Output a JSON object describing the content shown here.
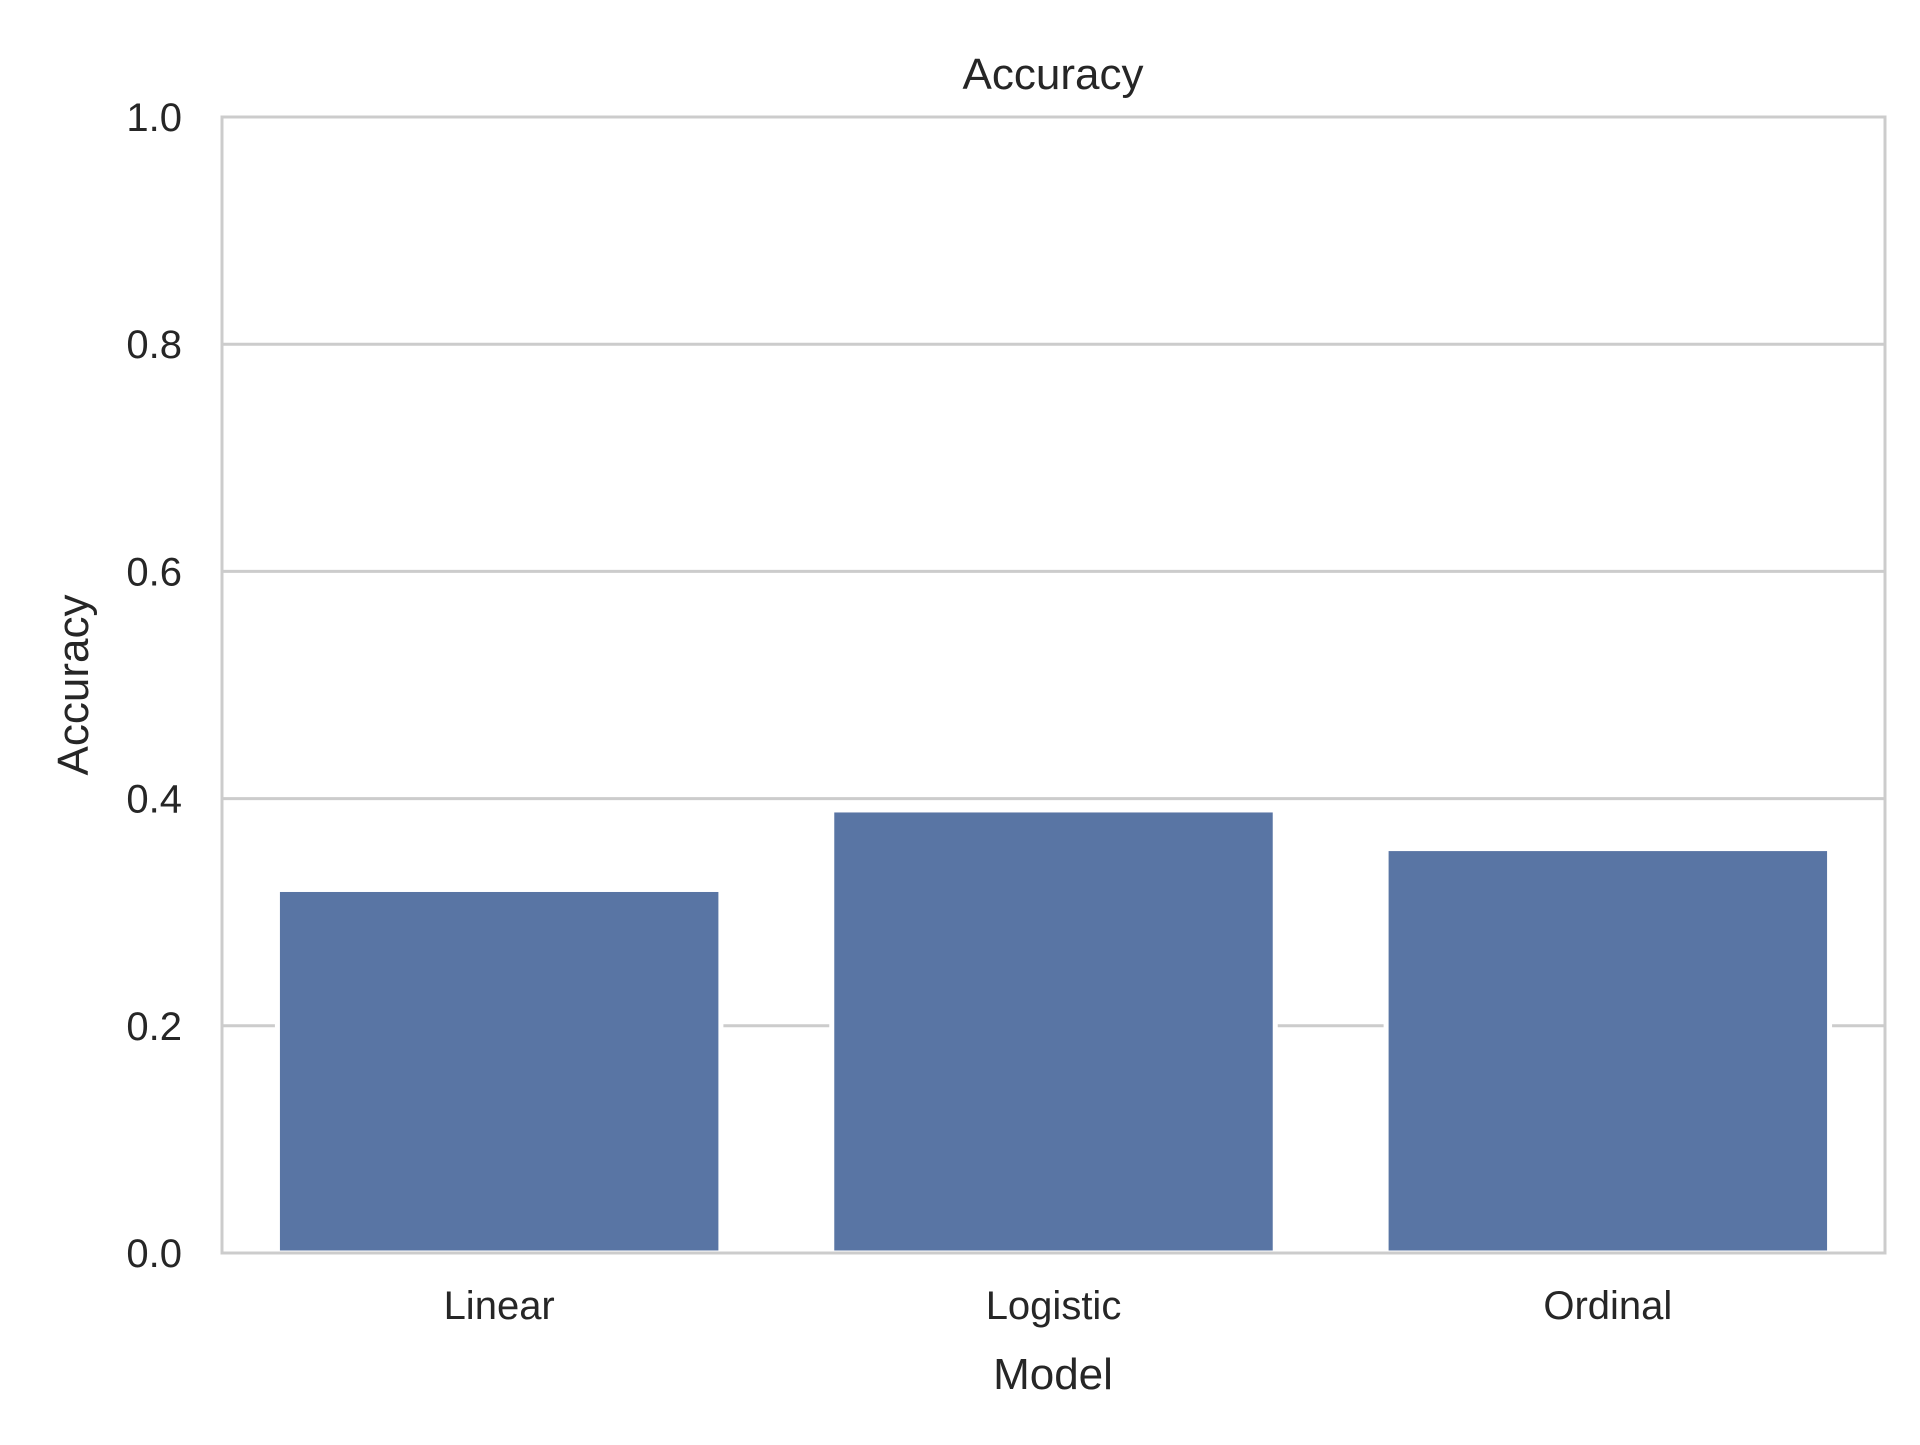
{
  "chart_data": {
    "type": "bar",
    "title": "Accuracy",
    "xlabel": "Model",
    "ylabel": "Accuracy",
    "categories": [
      "Linear",
      "Logistic",
      "Ordinal"
    ],
    "values": [
      0.32,
      0.39,
      0.356
    ],
    "ylim": [
      0,
      1.0
    ],
    "yticks": [
      0.0,
      0.2,
      0.4,
      0.6,
      0.8,
      1.0
    ],
    "ytick_labels": [
      "0.0",
      "0.2",
      "0.4",
      "0.6",
      "0.8",
      "1.0"
    ],
    "grid": "horizontal",
    "legend": "none",
    "colors": {
      "bar": "#5975a4",
      "grid": "#cccccc",
      "spine": "#cccccc",
      "text": "#262626",
      "background": "#ffffff"
    }
  }
}
